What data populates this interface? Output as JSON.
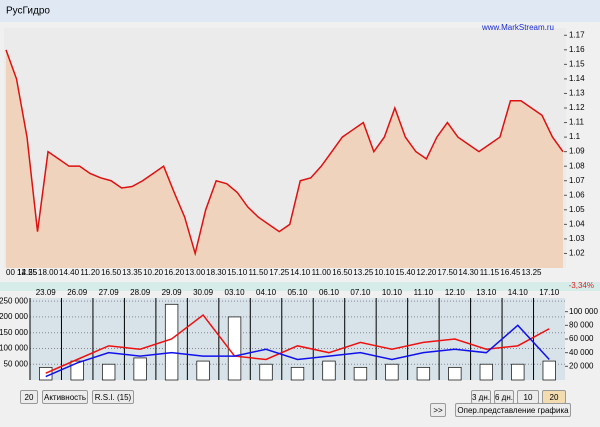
{
  "window": {
    "title": "РусГидро",
    "url": "www.MarkStream.ru"
  },
  "chart_data": [
    {
      "type": "area",
      "color": "#dd1111",
      "fill": "#efd3bd",
      "values": [
        1.16,
        1.14,
        1.1,
        1.035,
        1.09,
        1.085,
        1.08,
        1.08,
        1.075,
        1.072,
        1.07,
        1.065,
        1.066,
        1.07,
        1.075,
        1.08,
        1.062,
        1.045,
        1.02,
        1.05,
        1.07,
        1.068,
        1.062,
        1.052,
        1.045,
        1.04,
        1.035,
        1.04,
        1.07,
        1.072,
        1.08,
        1.09,
        1.1,
        1.105,
        1.11,
        1.09,
        1.1,
        1.12,
        1.1,
        1.09,
        1.085,
        1.1,
        1.11,
        1.1,
        1.095,
        1.09,
        1.095,
        1.1,
        1.125,
        1.125,
        1.12,
        1.115,
        1.1,
        1.09
      ],
      "categories": [
        "00 14.55",
        null,
        "12.25",
        null,
        "18.00",
        null,
        "14.40",
        null,
        "11.20",
        null,
        "16.50",
        null,
        "13.35",
        null,
        "10.20",
        null,
        "16.20",
        null,
        "13.00",
        null,
        "18.30",
        null,
        "15.10",
        null,
        "11.50",
        null,
        "17.25",
        null,
        "14.10",
        null,
        "11.00",
        null,
        "16.50",
        null,
        "13.25",
        null,
        "10.10",
        null,
        "15.40",
        null,
        "12.20",
        null,
        "17.50",
        null,
        "14.30",
        null,
        "11.15",
        null,
        "16.45",
        null,
        "13.25",
        null,
        null,
        null
      ],
      "ylim": [
        1.01,
        1.175
      ],
      "yticks": [
        1.02,
        1.03,
        1.04,
        1.05,
        1.06,
        1.07,
        1.08,
        1.09,
        1.1,
        1.11,
        1.12,
        1.13,
        1.14,
        1.15,
        1.16,
        1.17
      ],
      "change": "-3,34%"
    },
    {
      "type": "volume",
      "categories": [
        "23.09",
        "26.09",
        "27.09",
        "28.09",
        "29.09",
        "30.09",
        "03.10",
        "04.10",
        "05.10",
        "06.10",
        "07.10",
        "10.10",
        "11.10",
        "12.10",
        "13.10",
        "14.10",
        "17.10"
      ],
      "values": [
        40000,
        60000,
        50000,
        70000,
        240000,
        60000,
        200000,
        50000,
        40000,
        60000,
        40000,
        50000,
        40000,
        40000,
        50000,
        50000,
        60000
      ],
      "color": "#222222",
      "ylim": [
        0,
        260000
      ],
      "yticks": [
        {
          "value": 50000,
          "label": "50 000"
        },
        {
          "value": 100000,
          "label": "100 000"
        },
        {
          "value": 150000,
          "label": "150 000"
        },
        {
          "value": 200000,
          "label": "200 000"
        },
        {
          "value": 250000,
          "label": "250 000"
        }
      ],
      "y2lim": [
        0,
        120000
      ],
      "y2ticks": [
        {
          "value": 20000,
          "label": "20 000"
        },
        {
          "value": 40000,
          "label": "40 000"
        },
        {
          "value": 60000,
          "label": "60 000"
        },
        {
          "value": 80000,
          "label": "80 000"
        },
        {
          "value": 100000,
          "label": "100 000"
        }
      ],
      "series": [
        {
          "color": "#ee1111",
          "axis": "y2",
          "values": [
            10000,
            30000,
            50000,
            45000,
            60000,
            95000,
            35000,
            30000,
            50000,
            40000,
            55000,
            45000,
            55000,
            60000,
            45000,
            50000,
            75000
          ]
        },
        {
          "color": "#1111ee",
          "axis": "y2",
          "values": [
            5000,
            25000,
            40000,
            35000,
            40000,
            35000,
            35000,
            45000,
            30000,
            35000,
            40000,
            30000,
            40000,
            45000,
            40000,
            80000,
            30000
          ]
        }
      ]
    }
  ],
  "controls": {
    "period": "20",
    "activity": "Активность",
    "rsi": "R.S.I. (15)",
    "next": ">>",
    "ranges": [
      "3 дн.",
      "6 дн.",
      "10 дн.",
      "20 дн."
    ],
    "mode": "Опер.представление графика"
  }
}
